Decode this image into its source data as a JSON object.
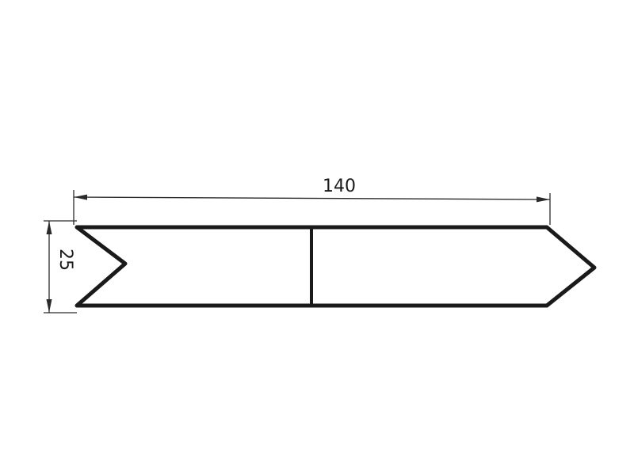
{
  "drawing": {
    "dimensions": {
      "width_label": "140",
      "height_label": "25"
    }
  }
}
